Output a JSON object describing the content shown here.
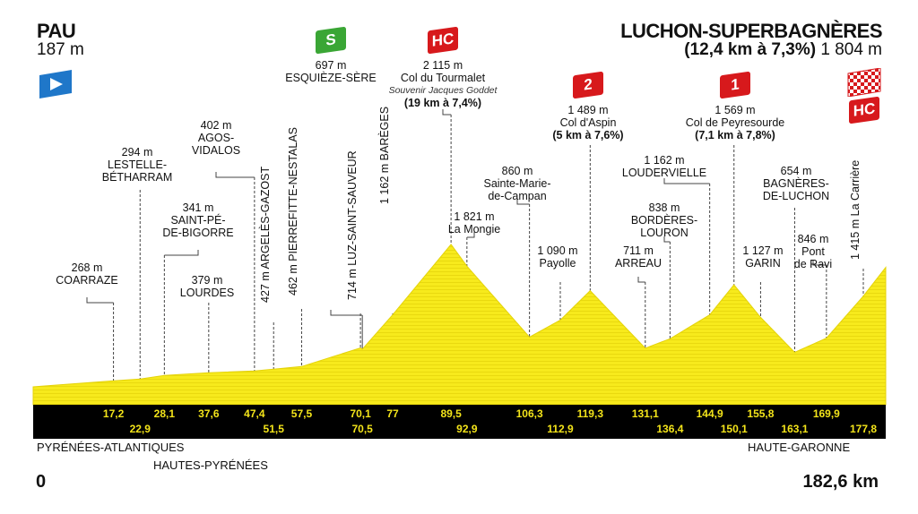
{
  "start": {
    "name": "PAU",
    "altitude": "187 m",
    "icon": "start-flag-icon"
  },
  "finish": {
    "name": "LUCHON-SUPERBAGNÈRES",
    "climb": "(12,4 km à 7,3%)",
    "altitude": "1 804 m",
    "icon": "checkered-flag-icon",
    "category": "HC"
  },
  "colors": {
    "profile": "#f7ea1c",
    "band": "#000000",
    "km_text": "#f3e41a",
    "hc_badge": "#d7191c",
    "sprint_badge": "#3aa635",
    "start_badge": "#1f77c9"
  },
  "regions": [
    "PYRÉNÉES-ATLANTIQUES",
    "HAUTES-PYRÉNÉES",
    "HAUTE-GARONNE"
  ],
  "distance": {
    "start": "0",
    "end": "182,6 km"
  },
  "chart_data": {
    "type": "area",
    "xlabel": "",
    "ylabel": "",
    "xlim": [
      0,
      182.6
    ],
    "profile": [
      [
        0,
        187
      ],
      [
        17.2,
        268
      ],
      [
        22.9,
        294
      ],
      [
        28.1,
        341
      ],
      [
        37.6,
        379
      ],
      [
        47.4,
        402
      ],
      [
        51.5,
        427
      ],
      [
        57.5,
        462
      ],
      [
        70.1,
        714
      ],
      [
        70.5,
        697
      ],
      [
        77,
        1162
      ],
      [
        89.5,
        2115
      ],
      [
        92.9,
        1821
      ],
      [
        106.3,
        860
      ],
      [
        112.9,
        1090
      ],
      [
        119.3,
        1489
      ],
      [
        131.1,
        711
      ],
      [
        136.4,
        838
      ],
      [
        144.9,
        1162
      ],
      [
        150.1,
        1569
      ],
      [
        155.8,
        1127
      ],
      [
        163.1,
        654
      ],
      [
        169.9,
        846
      ],
      [
        177.8,
        1415
      ],
      [
        182.6,
        1804
      ]
    ],
    "km_ticks_top": [
      "17,2",
      "28,1",
      "37,6",
      "47,4",
      "57,5",
      "70,1",
      "77",
      "89,5",
      "106,3",
      "119,3",
      "131,1",
      "144,9",
      "155,8",
      "169,9"
    ],
    "km_ticks_bottom": [
      "22,9",
      "51,5",
      "70,5",
      "92,9",
      "112,9",
      "136,4",
      "150,1",
      "163,1",
      "177,8"
    ],
    "points": [
      {
        "km": 17.2,
        "lines": [
          "268 m",
          "COARRAZE"
        ]
      },
      {
        "km": 22.9,
        "lines": [
          "294 m",
          "LESTELLE-",
          "BÉTHARRAM"
        ]
      },
      {
        "km": 28.1,
        "lines": [
          "341 m",
          "SAINT-PÉ-",
          "DE-BIGORRE"
        ]
      },
      {
        "km": 37.6,
        "lines": [
          "379 m",
          "LOURDES"
        ]
      },
      {
        "km": 47.4,
        "lines": [
          "402 m",
          "AGOS-",
          "VIDALOS"
        ]
      },
      {
        "km": 51.5,
        "lines": [
          "427 m ARGELÈS-GAZOST"
        ]
      },
      {
        "km": 57.5,
        "lines": [
          "462 m PIERREFITTE-NESTALAS"
        ]
      },
      {
        "km": 70.5,
        "lines": [
          "697 m",
          "ESQUIÈZE-SÈRE"
        ],
        "badge": "S"
      },
      {
        "km": 70.1,
        "lines": [
          "714 m LUZ-SAINT-SAUVEUR"
        ]
      },
      {
        "km": 77,
        "lines": [
          "1 162 m BARÈGES"
        ]
      },
      {
        "km": 89.5,
        "lines": [
          "2 115 m",
          "Col du Tourmalet"
        ],
        "note": "Souvenir Jacques Goddet",
        "climb": "(19 km à 7,4%)",
        "badge": "HC"
      },
      {
        "km": 92.9,
        "lines": [
          "1 821 m",
          "La Mongie"
        ]
      },
      {
        "km": 106.3,
        "lines": [
          "860 m",
          "Sainte-Marie-",
          "de-Campan"
        ]
      },
      {
        "km": 112.9,
        "lines": [
          "1 090 m",
          "Payolle"
        ]
      },
      {
        "km": 119.3,
        "lines": [
          "1 489 m",
          "Col d'Aspin"
        ],
        "climb": "(5 km à 7,6%)",
        "badge": "2"
      },
      {
        "km": 131.1,
        "lines": [
          "711 m",
          "ARREAU"
        ]
      },
      {
        "km": 136.4,
        "lines": [
          "838 m",
          "BORDÈRES-",
          "LOURON"
        ]
      },
      {
        "km": 144.9,
        "lines": [
          "1 162 m",
          "LOUDERVIELLE"
        ]
      },
      {
        "km": 150.1,
        "lines": [
          "1 569 m",
          "Col de Peyresourde"
        ],
        "climb": "(7,1 km à 7,8%)",
        "badge": "1"
      },
      {
        "km": 155.8,
        "lines": [
          "1 127 m",
          "GARIN"
        ]
      },
      {
        "km": 163.1,
        "lines": [
          "654 m",
          "BAGNÈRES-",
          "DE-LUCHON"
        ]
      },
      {
        "km": 169.9,
        "lines": [
          "846 m",
          "Pont",
          "de Ravi"
        ]
      },
      {
        "km": 177.8,
        "lines": [
          "1 415 m La Carrière"
        ]
      }
    ]
  }
}
